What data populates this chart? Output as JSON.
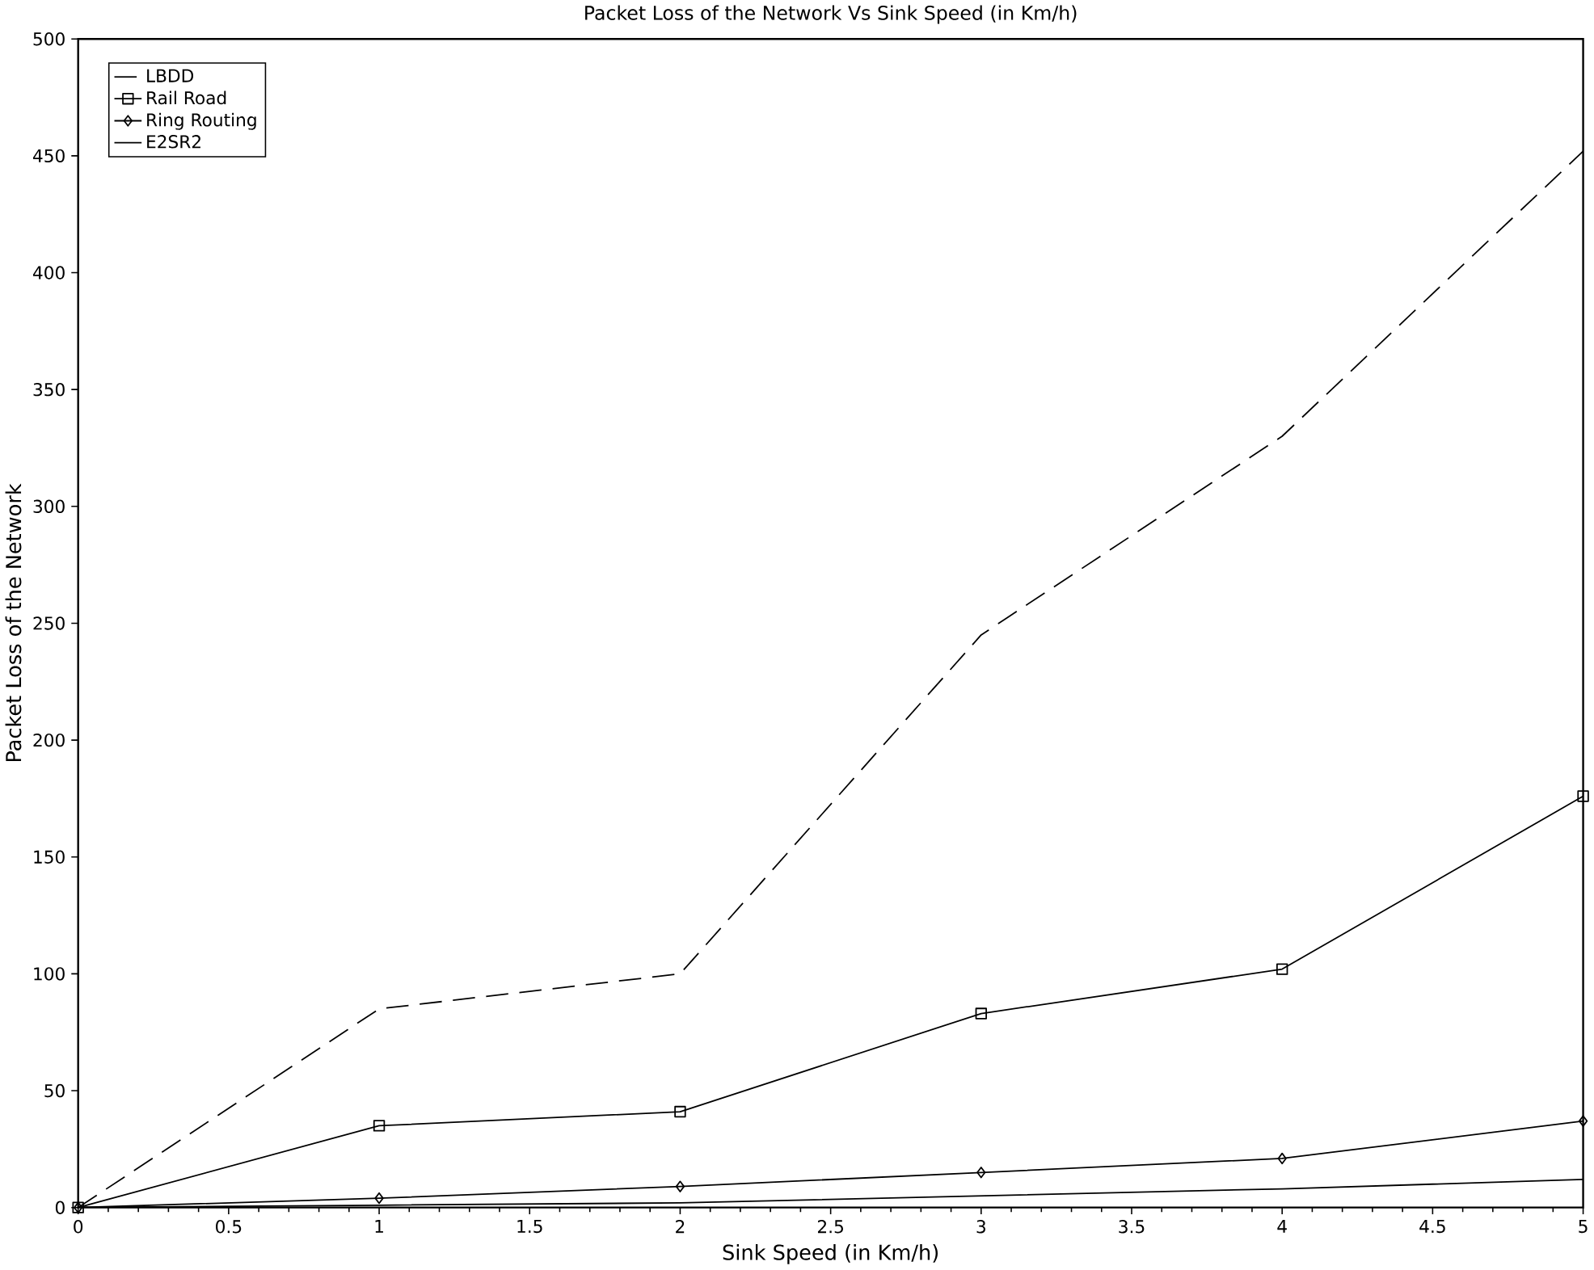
{
  "chart_data": {
    "type": "line",
    "title": "Packet Loss of the Network Vs Sink Speed (in Km/h)",
    "xlabel": "Sink Speed (in Km/h)",
    "ylabel": "Packet Loss of the Network",
    "x": [
      0,
      1,
      2,
      3,
      4,
      5
    ],
    "xlim": [
      0,
      5
    ],
    "ylim": [
      0,
      500
    ],
    "xticks": [
      0,
      0.5,
      1,
      1.5,
      2,
      2.5,
      3,
      3.5,
      4,
      4.5,
      5
    ],
    "yticks": [
      0,
      50,
      100,
      150,
      200,
      250,
      300,
      350,
      400,
      450,
      500
    ],
    "legend": "top left",
    "grid": false,
    "series": [
      {
        "name": "LBDD",
        "color": "#000000",
        "line_style": "dashed",
        "marker": "none",
        "values": [
          0,
          85,
          100,
          245,
          330,
          452
        ]
      },
      {
        "name": "Rail Road",
        "color": "#000000",
        "line_style": "solid",
        "marker": "square",
        "values": [
          0,
          35,
          41,
          83,
          102,
          176
        ]
      },
      {
        "name": "Ring Routing",
        "color": "#000000",
        "line_style": "solid",
        "marker": "diamond",
        "values": [
          0,
          4,
          9,
          15,
          21,
          37
        ]
      },
      {
        "name": "E2SR2",
        "color": "#000000",
        "line_style": "solid",
        "marker": "none",
        "values": [
          0,
          1,
          2,
          5,
          8,
          12
        ]
      }
    ]
  }
}
